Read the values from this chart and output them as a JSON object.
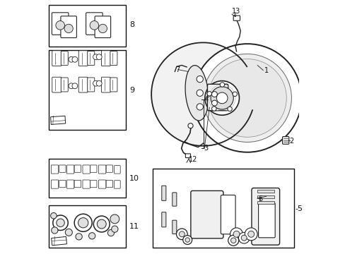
{
  "bg_color": "#ffffff",
  "line_color": "#222222",
  "box_color": "#111111",
  "label_color": "#111111"
}
